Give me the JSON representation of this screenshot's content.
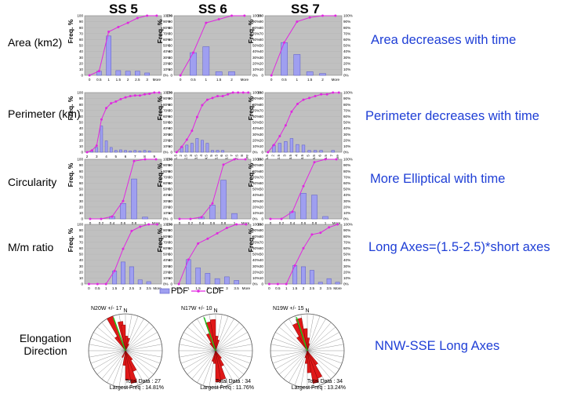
{
  "columns": [
    "SS 5",
    "SS 6",
    "SS 7"
  ],
  "rows": [
    {
      "label": "Area (km2)",
      "note": "Area decreases with time"
    },
    {
      "label": "Perimeter (km)",
      "note": "Perimeter decreases with time"
    },
    {
      "label": "Circularity",
      "note": "More Elliptical with time"
    },
    {
      "label": "M/m ratio",
      "note": "Long Axes=(1.5-2.5)*short axes"
    }
  ],
  "y_axis_label": "Freq. %",
  "left_axis_ticks": [
    "0",
    "10",
    "20",
    "30",
    "40",
    "50",
    "60",
    "70",
    "80",
    "90",
    "100"
  ],
  "right_axis_ticks": [
    "0%",
    "10%",
    "20%",
    "30%",
    "40%",
    "50%",
    "60%",
    "70%",
    "80%",
    "90%",
    "100%"
  ],
  "legend": {
    "pdf": "PDF",
    "cdf": "CDF"
  },
  "colors": {
    "bar": "#9f9ff0",
    "bar_edge": "#5a5ac8",
    "cdf": "#e028e0",
    "plot_bg": "#c0c0c0",
    "note": "#1f3fd6",
    "petal": "#e01818",
    "arrow": "#18c818"
  },
  "elongation": {
    "label": "Elongation Direction",
    "note": "NNW-SSE Long Axes",
    "north": "N",
    "roses": [
      {
        "direction": "N20W +/- 17",
        "total": "Total Data : 27",
        "largest": "Largest Freq : 14.81%"
      },
      {
        "direction": "N17W +/- 10",
        "total": "Total Data : 34",
        "largest": "Largest Freq : 11.76%"
      },
      {
        "direction": "N19W +/- 15",
        "total": "Total Data : 34",
        "largest": "Largest Freq : 13.24%"
      }
    ]
  },
  "chart_data": [
    {
      "type": "bar",
      "row": "Area (km2)",
      "column": "SS 5",
      "categories": [
        "0",
        "0.5",
        "1",
        "1.5",
        "2",
        "2.5",
        "3",
        "More"
      ],
      "pdf": [
        0,
        7,
        66,
        8,
        7,
        7,
        4,
        0
      ],
      "cdf": [
        0,
        7,
        73,
        81,
        88,
        96,
        100,
        100
      ],
      "ylim": [
        0,
        100
      ]
    },
    {
      "type": "bar",
      "row": "Area (km2)",
      "column": "SS 6",
      "categories": [
        "0",
        "0.5",
        "1",
        "1.5",
        "2",
        "More"
      ],
      "pdf": [
        0,
        38,
        48,
        6,
        6,
        0
      ],
      "cdf": [
        0,
        38,
        88,
        94,
        100,
        100
      ],
      "ylim": [
        0,
        100
      ]
    },
    {
      "type": "bar",
      "row": "Area (km2)",
      "column": "SS 7",
      "categories": [
        "0",
        "0.5",
        "1",
        "1.5",
        "2",
        "More"
      ],
      "pdf": [
        0,
        55,
        35,
        6,
        3,
        0
      ],
      "cdf": [
        0,
        55,
        90,
        97,
        100,
        100
      ],
      "ylim": [
        0,
        100
      ]
    },
    {
      "type": "bar",
      "row": "Perimeter (km)",
      "column": "SS 5",
      "categories": [
        "2",
        "",
        "3",
        "",
        "4",
        "",
        "5",
        "",
        "6",
        "",
        "7",
        "",
        "8",
        "",
        "9",
        ""
      ],
      "pdf": [
        0,
        3,
        8,
        44,
        19,
        8,
        3,
        4,
        3,
        2,
        3,
        2,
        3,
        2,
        0,
        0
      ],
      "cdf": [
        0,
        3,
        11,
        55,
        74,
        82,
        85,
        89,
        92,
        94,
        95,
        95,
        97,
        98,
        100,
        100
      ],
      "ylim": [
        0,
        100
      ]
    },
    {
      "type": "bar",
      "row": "Perimeter (km)",
      "column": "SS 6",
      "categories": [
        "1.5",
        "2",
        "2.5",
        "3",
        "3.5",
        "4",
        "4.5",
        "5",
        "5.5",
        "6",
        "6.5",
        "7",
        "7.5",
        "8",
        "More"
      ],
      "pdf": [
        0,
        9,
        12,
        15,
        23,
        20,
        15,
        3,
        3,
        3,
        0,
        0,
        0,
        0,
        0
      ],
      "cdf": [
        0,
        9,
        21,
        36,
        59,
        79,
        88,
        91,
        94,
        94,
        97,
        100,
        100,
        100,
        100
      ],
      "ylim": [
        0,
        100
      ]
    },
    {
      "type": "bar",
      "row": "Perimeter (km)",
      "column": "SS 7",
      "categories": [
        "1.5",
        "2",
        "2.5",
        "3",
        "3.5",
        "4",
        "4.5",
        "5",
        "5.5",
        "6",
        "6.5",
        "7",
        "More"
      ],
      "pdf": [
        0,
        12,
        15,
        18,
        23,
        13,
        12,
        3,
        3,
        3,
        0,
        3,
        0
      ],
      "cdf": [
        0,
        12,
        27,
        45,
        68,
        81,
        88,
        91,
        94,
        97,
        97,
        100,
        100
      ],
      "ylim": [
        0,
        100
      ]
    },
    {
      "type": "bar",
      "row": "Circularity",
      "column": "SS 5",
      "categories": [
        "0",
        "0.2",
        "0.4",
        "0.6",
        "0.8",
        "1",
        "More"
      ],
      "pdf": [
        0,
        0,
        4,
        26,
        67,
        3,
        0
      ],
      "cdf": [
        0,
        0,
        4,
        30,
        97,
        100,
        100
      ],
      "ylim": [
        0,
        100
      ]
    },
    {
      "type": "bar",
      "row": "Circularity",
      "column": "SS 6",
      "categories": [
        "0",
        "0.2",
        "0.4",
        "0.6",
        "0.8",
        "1",
        "More"
      ],
      "pdf": [
        0,
        0,
        3,
        23,
        65,
        9,
        0
      ],
      "cdf": [
        0,
        0,
        3,
        26,
        91,
        100,
        100
      ],
      "ylim": [
        0,
        100
      ]
    },
    {
      "type": "bar",
      "row": "Circularity",
      "column": "SS 7",
      "categories": [
        "0",
        "0.2",
        "0.4",
        "0.6",
        "0.8",
        "1",
        "More"
      ],
      "pdf": [
        0,
        0,
        12,
        43,
        40,
        4,
        0
      ],
      "cdf": [
        0,
        0,
        12,
        55,
        95,
        100,
        100
      ],
      "ylim": [
        0,
        100
      ]
    },
    {
      "type": "bar",
      "row": "M/m ratio",
      "column": "SS 5",
      "categories": [
        "0",
        "0.5",
        "1",
        "1.5",
        "2",
        "2.5",
        "3",
        "3.5",
        "More"
      ],
      "pdf": [
        0,
        0,
        0,
        22,
        37,
        29,
        7,
        4,
        0
      ],
      "cdf": [
        0,
        0,
        0,
        22,
        59,
        89,
        96,
        100,
        100
      ],
      "ylim": [
        0,
        100
      ]
    },
    {
      "type": "bar",
      "row": "M/m ratio",
      "column": "SS 6",
      "categories": [
        "0.5",
        "1",
        "1.5",
        "2",
        "2.5",
        "3",
        "3.5",
        "More"
      ],
      "pdf": [
        0,
        41,
        27,
        18,
        9,
        12,
        6,
        0
      ],
      "cdf": [
        0,
        41,
        68,
        76,
        85,
        94,
        100,
        100
      ],
      "ylim": [
        0,
        100
      ]
    },
    {
      "type": "bar",
      "row": "M/m ratio",
      "column": "SS 7",
      "categories": [
        "0",
        "0.5",
        "1",
        "1.5",
        "2",
        "2.5",
        "3",
        "3.5",
        "More"
      ],
      "pdf": [
        0,
        0,
        0,
        31,
        29,
        23,
        3,
        9,
        3
      ],
      "cdf": [
        0,
        0,
        0,
        31,
        60,
        83,
        86,
        95,
        100
      ],
      "ylim": [
        0,
        100
      ]
    }
  ]
}
